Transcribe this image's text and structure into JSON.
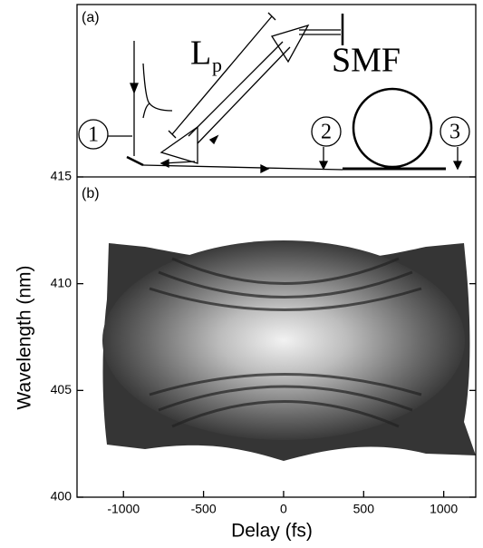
{
  "diagram": {
    "panel_label": "(a)",
    "length_symbol": "L",
    "length_subscript": "p",
    "fiber_label": "SMF",
    "markers": [
      "1",
      "2",
      "3"
    ]
  },
  "chart_data": {
    "type": "heatmap",
    "panel_label": "(b)",
    "xlabel": "Delay (fs)",
    "ylabel": "Wavelength (nm)",
    "xlim": [
      -1290,
      1200
    ],
    "xticks": [
      -1000,
      -500,
      0,
      500,
      1000
    ],
    "ylim": [
      400,
      415
    ],
    "yticks": [
      400,
      405,
      410,
      415
    ]
  }
}
